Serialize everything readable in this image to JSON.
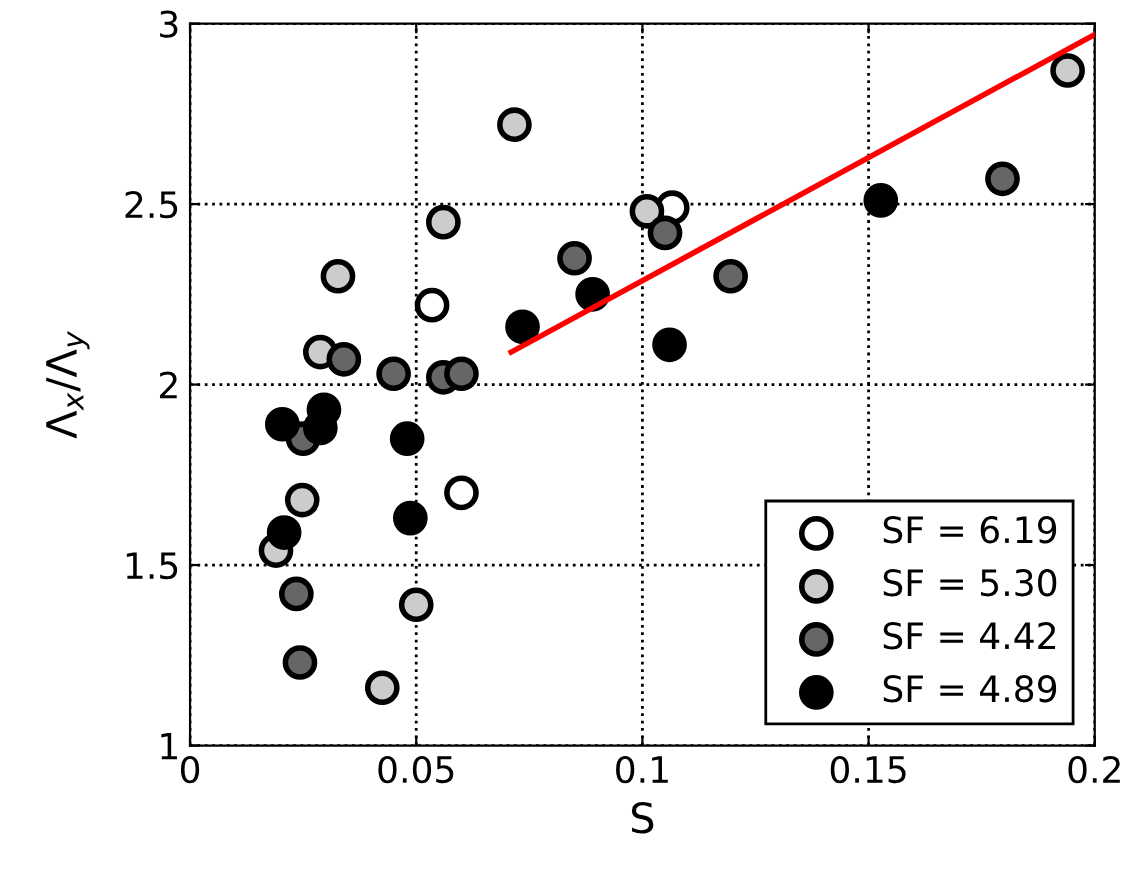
{
  "chart_data": {
    "type": "scatter",
    "xlabel": "S",
    "ylabel": "Λ$_{x}$/Λ$_{y}$",
    "xlim": [
      0,
      0.2
    ],
    "ylim": [
      1,
      3
    ],
    "xticks": [
      0,
      0.05,
      0.1,
      0.15,
      0.2
    ],
    "yticks": [
      1,
      1.5,
      2,
      2.5,
      3
    ],
    "grid": true,
    "legend": "bottom right",
    "marker": "circle",
    "series": [
      {
        "name": "SF = 6.19",
        "color": "#ffffff",
        "x": [
          0.0535,
          0.06,
          0.1066
        ],
        "values": [
          2.22,
          1.7,
          2.49
        ]
      },
      {
        "name": "SF = 5.30",
        "color": "#cccccc",
        "x": [
          0.0717,
          0.056,
          0.0327,
          0.0288,
          0.0248,
          0.019,
          0.05,
          0.0425,
          0.101,
          0.194
        ],
        "values": [
          2.72,
          2.45,
          2.3,
          2.09,
          1.68,
          1.54,
          1.39,
          1.16,
          2.48,
          2.87
        ]
      },
      {
        "name": "SF = 4.42",
        "color": "#666666",
        "x": [
          0.034,
          0.045,
          0.056,
          0.06,
          0.085,
          0.025,
          0.0235,
          0.0243,
          0.105,
          0.1195,
          0.1796
        ],
        "values": [
          2.07,
          2.03,
          2.02,
          2.03,
          2.35,
          1.85,
          1.42,
          1.23,
          2.42,
          2.3,
          2.57
        ]
      },
      {
        "name": "SF = 4.89",
        "color": "#000000",
        "x": [
          0.0204,
          0.0296,
          0.0288,
          0.048,
          0.0208,
          0.0487,
          0.0735,
          0.089,
          0.106,
          0.1527
        ],
        "values": [
          1.89,
          1.93,
          1.88,
          1.85,
          1.59,
          1.63,
          2.16,
          2.25,
          2.11,
          2.51
        ]
      },
      {
        "type": "line",
        "color": "#ff0000",
        "marker": "none",
        "x": [
          0.071,
          0.2
        ],
        "values": [
          2.09,
          2.97
        ]
      }
    ]
  }
}
